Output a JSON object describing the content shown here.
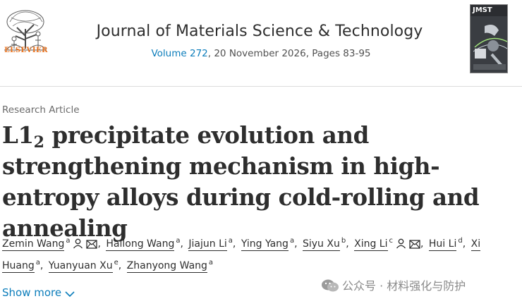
{
  "publisher": {
    "name": "ELSEVIER"
  },
  "journal": {
    "title": "Journal of Materials Science & Technology",
    "volume_link": "Volume 272",
    "issue_rest": ", 20 November 2026, Pages 83-95",
    "cover_label": "JMST"
  },
  "article": {
    "type": "Research Article",
    "title_prefix": "L1",
    "title_subscript": "2",
    "title_rest": " precipitate evolution and strengthening mechanism in high-entropy alloys during cold-rolling and annealing"
  },
  "authors": [
    {
      "name": "Zemin Wang",
      "aff": "a",
      "icons": [
        "person-icon",
        "mail-icon"
      ]
    },
    {
      "name": "Hailong Wang",
      "aff": "a",
      "icons": []
    },
    {
      "name": "Jiajun Li",
      "aff": "a",
      "icons": []
    },
    {
      "name": "Ying Yang",
      "aff": "a",
      "icons": []
    },
    {
      "name": "Siyu Xu",
      "aff": "b",
      "icons": []
    },
    {
      "name": "Xing Li",
      "aff": "c",
      "icons": [
        "person-icon",
        "mail-icon"
      ]
    },
    {
      "name": "Hui Li",
      "aff": "d",
      "icons": []
    },
    {
      "name": "Xi Huang",
      "aff": "a",
      "icons": []
    },
    {
      "name": "Yuanyuan Xu",
      "aff": "e",
      "icons": []
    },
    {
      "name": "Zhanyong Wang",
      "aff": "a",
      "icons": []
    }
  ],
  "show_more": "Show more",
  "watermark": "公众号 · 材料强化与防护",
  "colors": {
    "link": "#0c7dbb",
    "elsevier": "#e9711c"
  }
}
